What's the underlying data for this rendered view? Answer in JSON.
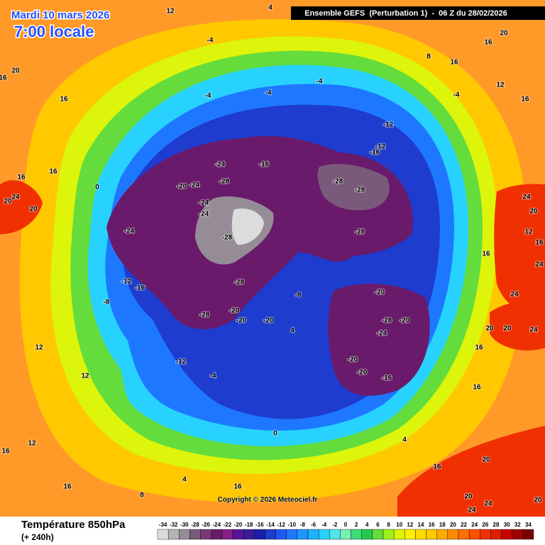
{
  "header": {
    "date": "Mardi 10 mars 2026",
    "time": "7:00 locale",
    "model": "Ensemble GEFS  (Perturbation 1)  -  06 Z du 28/02/2026"
  },
  "map": {
    "copyright": "Copyright © 2026 Meteociel.fr",
    "labels": [
      12,
      4,
      20,
      16,
      16,
      -4,
      -4,
      -4,
      -12,
      -12,
      -16,
      -16,
      -24,
      -20,
      -24,
      -28,
      -24,
      -24,
      -24,
      -28,
      -28,
      -28,
      8,
      16,
      20,
      16,
      16,
      12,
      -4,
      -28,
      -12,
      -16,
      -28,
      -28,
      -20,
      -20,
      -12,
      -4,
      -8,
      -20,
      -20,
      -28,
      -24,
      -20,
      -20,
      -20,
      -16,
      24,
      20,
      20,
      16,
      16,
      12,
      12,
      16,
      12,
      16,
      16,
      4,
      8,
      20,
      20,
      24,
      24,
      24,
      20,
      12,
      16,
      24,
      16,
      16,
      16,
      16,
      20,
      20,
      24,
      24,
      20,
      0,
      0,
      4,
      -8,
      -4,
      4
    ]
  },
  "footer": {
    "title": "Température 850hPa",
    "subtitle": "(+ 240h)"
  },
  "legend": {
    "ticks": [
      -34,
      -32,
      -30,
      -28,
      -26,
      -24,
      -22,
      -20,
      -18,
      -16,
      -14,
      -12,
      -10,
      -8,
      -6,
      -4,
      -2,
      0,
      2,
      4,
      6,
      8,
      10,
      12,
      14,
      16,
      18,
      20,
      22,
      24,
      26,
      28,
      30,
      32,
      34
    ],
    "colors": [
      "#dcdcdc",
      "#b4b4b4",
      "#968c96",
      "#7a5a7a",
      "#7a3a7a",
      "#6a1a6a",
      "#861e86",
      "#5a1496",
      "#3a1a9a",
      "#1e1eaa",
      "#1e3ccd",
      "#1e5af0",
      "#1e78ff",
      "#1e96ff",
      "#1eb4ff",
      "#28d2ff",
      "#50e6e6",
      "#78f0b4",
      "#3cdc78",
      "#28c850",
      "#64dc3c",
      "#a0f01e",
      "#dcf50a",
      "#fff000",
      "#ffdc00",
      "#ffc800",
      "#ffaa00",
      "#ff8c00",
      "#ff6e00",
      "#ff5000",
      "#f03000",
      "#dc1e00",
      "#c80000",
      "#a00000",
      "#780000"
    ]
  }
}
